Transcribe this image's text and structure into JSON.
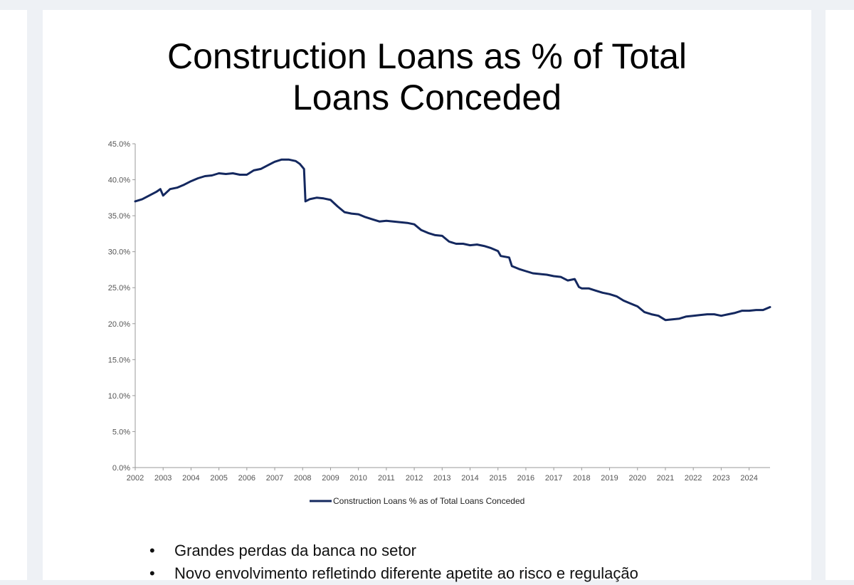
{
  "slide": {
    "title_lines": [
      "Construction Loans as % of Total",
      "Loans Conceded"
    ],
    "bullets": [
      "Grandes perdas da banca no setor",
      "Novo envolvimento refletindo diferente apetite ao risco e regulação"
    ],
    "bullet_glyph": "•"
  },
  "chart_data": {
    "type": "line",
    "title": "Construction Loans as % of Total Loans Conceded",
    "xlabel": "",
    "ylabel": "",
    "x_start": 2002,
    "x_end": 2024.75,
    "xlim": [
      2002,
      2024.75
    ],
    "ylim": [
      0,
      45
    ],
    "ytick_values": [
      0,
      5,
      10,
      15,
      20,
      25,
      30,
      35,
      40,
      45
    ],
    "ytick_labels": [
      "0.0%",
      "5.0%",
      "10.0%",
      "15.0%",
      "20.0%",
      "25.0%",
      "30.0%",
      "35.0%",
      "40.0%",
      "45.0%"
    ],
    "xtick_labels": [
      "2002",
      "2003",
      "2004",
      "2005",
      "2006",
      "2007",
      "2008",
      "2009",
      "2010",
      "2011",
      "2012",
      "2013",
      "2014",
      "2015",
      "2016",
      "2017",
      "2018",
      "2019",
      "2020",
      "2021",
      "2022",
      "2023",
      "2024"
    ],
    "grid": false,
    "legend_position": "bottom",
    "line_color": "#14285f",
    "series": [
      {
        "name": "Construction Loans % as of Total Loans Conceded",
        "points": [
          [
            2002.0,
            37.0
          ],
          [
            2002.25,
            37.3
          ],
          [
            2002.5,
            37.8
          ],
          [
            2002.75,
            38.3
          ],
          [
            2002.9,
            38.7
          ],
          [
            2003.0,
            37.8
          ],
          [
            2003.25,
            38.7
          ],
          [
            2003.5,
            38.9
          ],
          [
            2003.75,
            39.3
          ],
          [
            2004.0,
            39.8
          ],
          [
            2004.25,
            40.2
          ],
          [
            2004.5,
            40.5
          ],
          [
            2004.75,
            40.6
          ],
          [
            2005.0,
            40.9
          ],
          [
            2005.25,
            40.8
          ],
          [
            2005.5,
            40.9
          ],
          [
            2005.75,
            40.7
          ],
          [
            2006.0,
            40.7
          ],
          [
            2006.25,
            41.3
          ],
          [
            2006.5,
            41.5
          ],
          [
            2006.75,
            42.0
          ],
          [
            2007.0,
            42.5
          ],
          [
            2007.25,
            42.8
          ],
          [
            2007.5,
            42.8
          ],
          [
            2007.75,
            42.6
          ],
          [
            2007.9,
            42.2
          ],
          [
            2008.05,
            41.5
          ],
          [
            2008.1,
            37.0
          ],
          [
            2008.25,
            37.3
          ],
          [
            2008.5,
            37.5
          ],
          [
            2008.75,
            37.4
          ],
          [
            2009.0,
            37.2
          ],
          [
            2009.25,
            36.3
          ],
          [
            2009.5,
            35.5
          ],
          [
            2009.75,
            35.3
          ],
          [
            2010.0,
            35.2
          ],
          [
            2010.25,
            34.8
          ],
          [
            2010.5,
            34.5
          ],
          [
            2010.75,
            34.2
          ],
          [
            2011.0,
            34.3
          ],
          [
            2011.25,
            34.2
          ],
          [
            2011.5,
            34.1
          ],
          [
            2011.75,
            34.0
          ],
          [
            2012.0,
            33.8
          ],
          [
            2012.25,
            33.0
          ],
          [
            2012.5,
            32.6
          ],
          [
            2012.75,
            32.3
          ],
          [
            2013.0,
            32.2
          ],
          [
            2013.25,
            31.4
          ],
          [
            2013.5,
            31.1
          ],
          [
            2013.75,
            31.1
          ],
          [
            2014.0,
            30.9
          ],
          [
            2014.25,
            31.0
          ],
          [
            2014.5,
            30.8
          ],
          [
            2014.75,
            30.5
          ],
          [
            2015.0,
            30.1
          ],
          [
            2015.1,
            29.4
          ],
          [
            2015.4,
            29.2
          ],
          [
            2015.5,
            28.0
          ],
          [
            2015.75,
            27.6
          ],
          [
            2016.0,
            27.3
          ],
          [
            2016.25,
            27.0
          ],
          [
            2016.5,
            26.9
          ],
          [
            2016.75,
            26.8
          ],
          [
            2017.0,
            26.6
          ],
          [
            2017.25,
            26.5
          ],
          [
            2017.5,
            26.0
          ],
          [
            2017.75,
            26.2
          ],
          [
            2017.9,
            25.1
          ],
          [
            2018.0,
            24.9
          ],
          [
            2018.25,
            24.9
          ],
          [
            2018.5,
            24.6
          ],
          [
            2018.75,
            24.3
          ],
          [
            2019.0,
            24.1
          ],
          [
            2019.25,
            23.8
          ],
          [
            2019.5,
            23.2
          ],
          [
            2019.75,
            22.8
          ],
          [
            2020.0,
            22.4
          ],
          [
            2020.25,
            21.6
          ],
          [
            2020.5,
            21.3
          ],
          [
            2020.75,
            21.1
          ],
          [
            2021.0,
            20.5
          ],
          [
            2021.25,
            20.6
          ],
          [
            2021.5,
            20.7
          ],
          [
            2021.75,
            21.0
          ],
          [
            2022.0,
            21.1
          ],
          [
            2022.25,
            21.2
          ],
          [
            2022.5,
            21.3
          ],
          [
            2022.75,
            21.3
          ],
          [
            2023.0,
            21.1
          ],
          [
            2023.25,
            21.3
          ],
          [
            2023.5,
            21.5
          ],
          [
            2023.75,
            21.8
          ],
          [
            2024.0,
            21.8
          ],
          [
            2024.25,
            21.9
          ],
          [
            2024.5,
            21.9
          ],
          [
            2024.75,
            22.3
          ]
        ]
      }
    ]
  }
}
